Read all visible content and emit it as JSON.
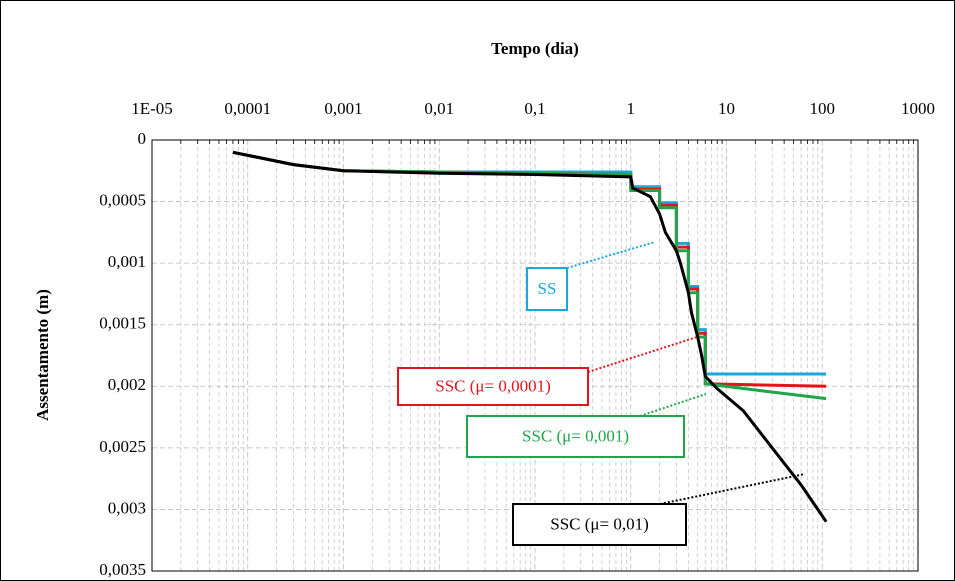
{
  "chart_data": {
    "type": "line",
    "x_label": "Tempo (dia)",
    "y_label": "Assentamento (m)",
    "xlim": [
      1e-05,
      1000
    ],
    "x_log": true,
    "xticks": [
      {
        "value": 1e-05,
        "label": "1E-05"
      },
      {
        "value": 0.0001,
        "label": "0,0001"
      },
      {
        "value": 0.001,
        "label": "0,001"
      },
      {
        "value": 0.01,
        "label": "0,01"
      },
      {
        "value": 0.1,
        "label": "0,1"
      },
      1,
      10,
      100,
      1000
    ],
    "ylim": [
      0,
      0.0035
    ],
    "y_inverted": true,
    "yticks": [
      0,
      {
        "value": 0.0005,
        "label": "0,0005"
      },
      {
        "value": 0.001,
        "label": "0,001"
      },
      {
        "value": 0.0015,
        "label": "0,0015"
      },
      {
        "value": 0.002,
        "label": "0,002"
      },
      {
        "value": 0.0025,
        "label": "0,0025"
      },
      {
        "value": 0.003,
        "label": "0,003"
      },
      {
        "value": 0.0035,
        "label": "0,0035"
      }
    ],
    "grid": true,
    "series": [
      {
        "name": "SS",
        "color": "#1aa7dc",
        "x": [
          7e-05,
          0.0003,
          0.001,
          0.01,
          1,
          1,
          2,
          2,
          3,
          3,
          4,
          4,
          5,
          5,
          6,
          6,
          110
        ],
        "values": [
          0.0001,
          0.0002,
          0.00025,
          0.00026,
          0.00026,
          0.00038,
          0.00038,
          0.00051,
          0.00051,
          0.00084,
          0.00084,
          0.00119,
          0.00119,
          0.00154,
          0.00154,
          0.0019,
          0.0019
        ]
      },
      {
        "name": "SSC  (μ= 0,0001)",
        "color": "#e3141b",
        "x": [
          7e-05,
          0.0003,
          0.001,
          0.01,
          1,
          1,
          2,
          2,
          3,
          3,
          4,
          4,
          5,
          5,
          6,
          6,
          110
        ],
        "values": [
          0.0001,
          0.0002,
          0.00025,
          0.00026,
          0.00028,
          0.0004,
          0.0004,
          0.00053,
          0.00053,
          0.00087,
          0.00087,
          0.00121,
          0.00121,
          0.00157,
          0.00157,
          0.00198,
          0.002
        ]
      },
      {
        "name": "SSC  (μ= 0,001)",
        "color": "#1fa64a",
        "x": [
          7e-05,
          0.0003,
          0.001,
          0.01,
          1,
          1,
          2,
          2,
          3,
          3,
          4,
          4,
          5,
          5,
          6,
          6,
          20,
          110
        ],
        "values": [
          0.0001,
          0.0002,
          0.00025,
          0.00026,
          0.00028,
          0.00041,
          0.00041,
          0.00055,
          0.00055,
          0.0009,
          0.0009,
          0.00124,
          0.00124,
          0.0016,
          0.0016,
          0.00198,
          0.00203,
          0.0021
        ]
      },
      {
        "name": "SSC  (μ= 0,01)",
        "color": "#000000",
        "x": [
          7e-05,
          0.0003,
          0.001,
          0.01,
          0.1,
          1,
          1.05,
          1.6,
          2,
          2.3,
          3,
          3.3,
          4,
          4.3,
          5,
          5.5,
          6,
          8,
          15,
          30,
          60,
          110
        ],
        "values": [
          0.0001,
          0.0002,
          0.00025,
          0.00027,
          0.00028,
          0.0003,
          0.00039,
          0.00046,
          0.0006,
          0.00075,
          0.0009,
          0.001,
          0.00124,
          0.0014,
          0.0016,
          0.00175,
          0.00192,
          0.00202,
          0.0022,
          0.0025,
          0.0028,
          0.0031
        ]
      }
    ]
  }
}
